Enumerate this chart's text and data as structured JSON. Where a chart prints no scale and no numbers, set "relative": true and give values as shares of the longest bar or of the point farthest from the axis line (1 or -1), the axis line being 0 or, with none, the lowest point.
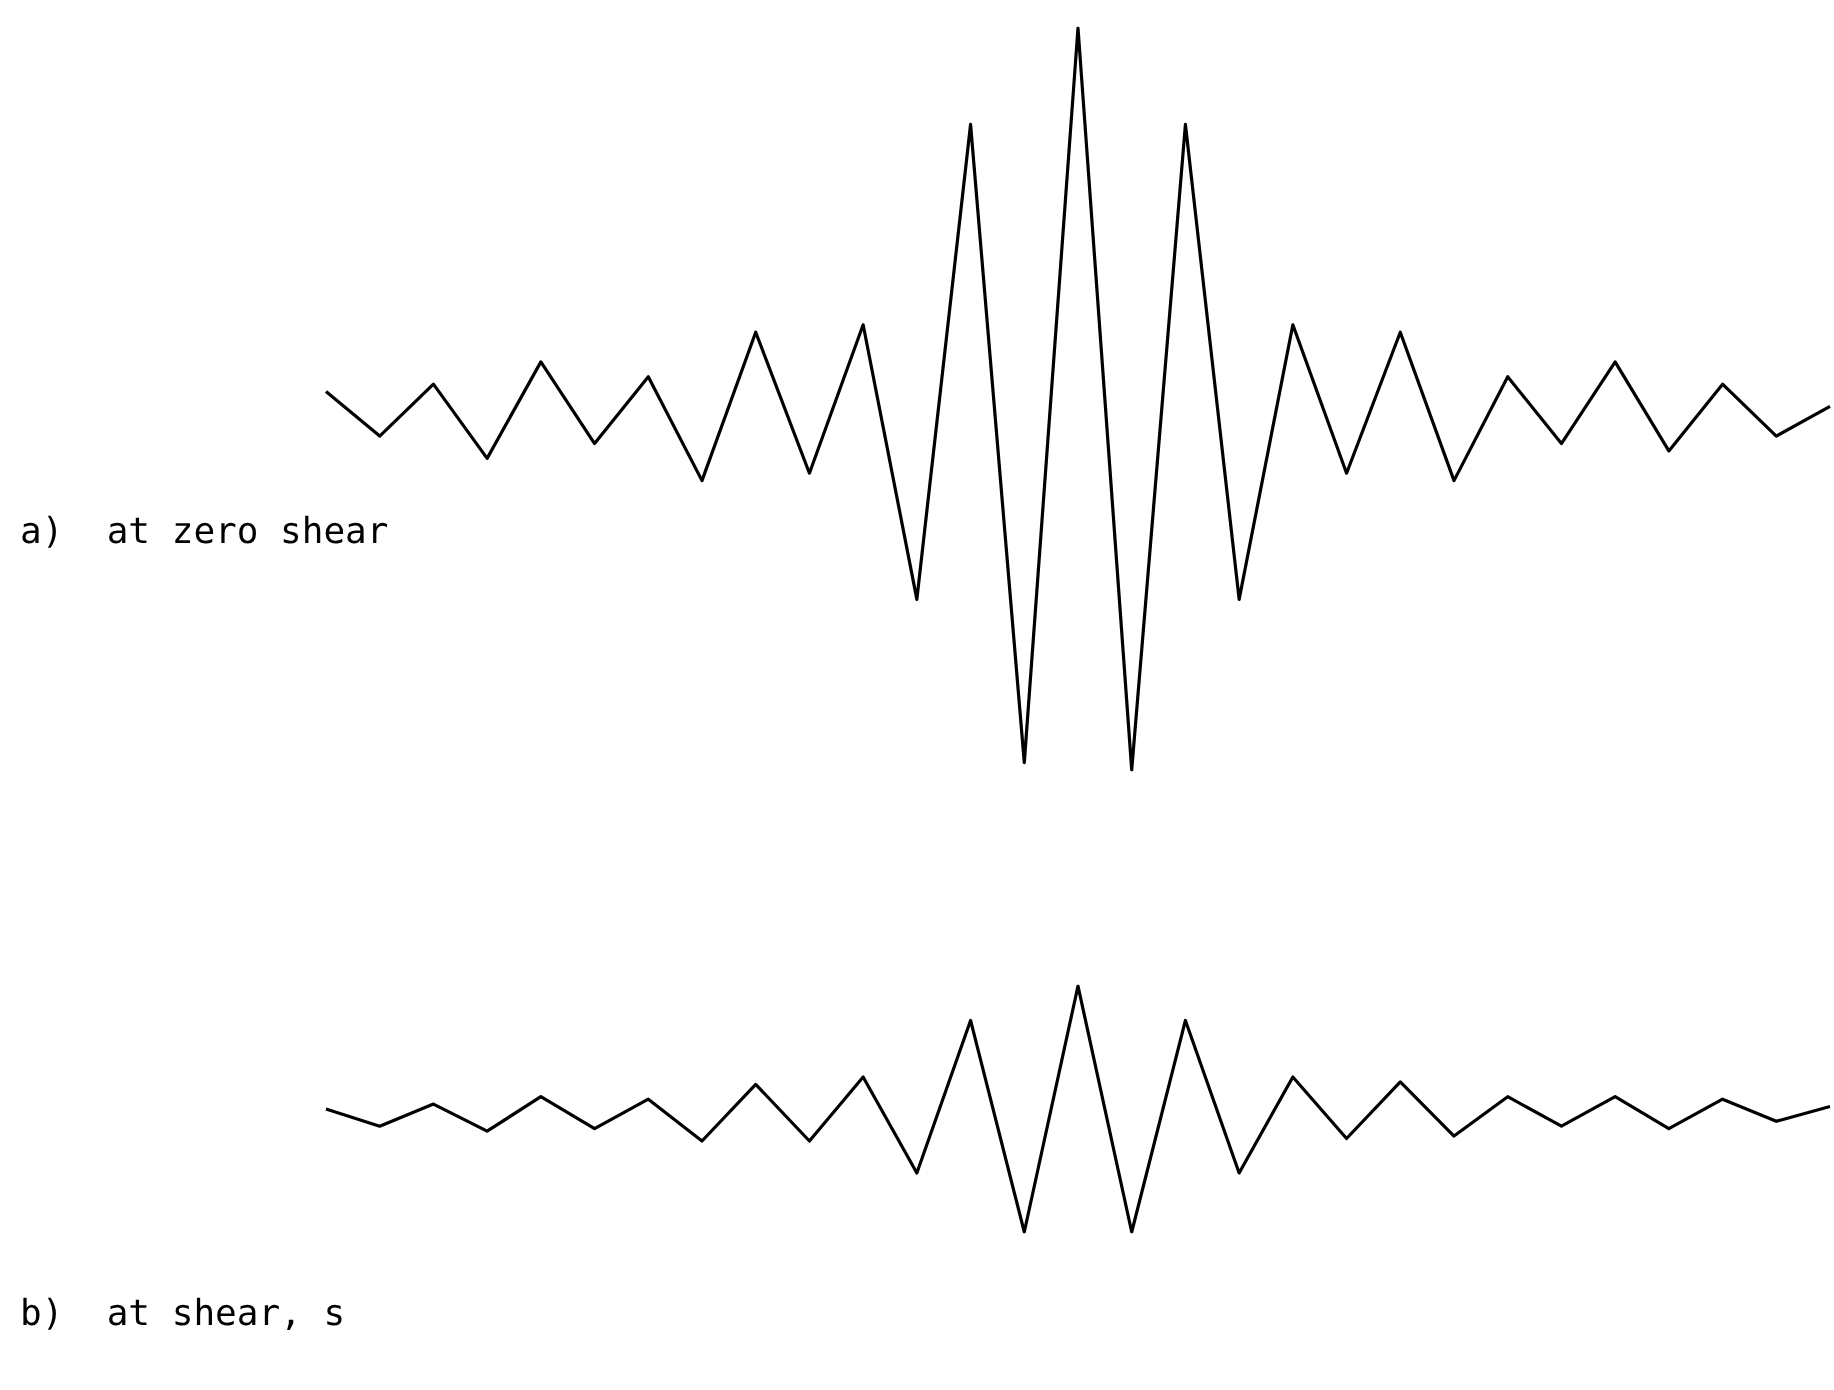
{
  "chart_data": [
    {
      "type": "line",
      "title": "a)  at zero shear",
      "relative": true,
      "marker": "none",
      "color": "#000000",
      "categories": [
        null,
        null,
        null,
        null,
        null,
        null,
        null,
        null,
        null,
        null,
        null,
        null,
        null,
        null,
        null,
        null,
        null,
        null,
        null,
        null,
        null,
        null,
        null,
        null,
        null,
        null,
        null,
        null,
        null
      ],
      "values": [
        0.51,
        0.45,
        0.52,
        0.42,
        0.55,
        0.44,
        0.53,
        0.39,
        0.59,
        0.4,
        0.6,
        0.23,
        0.87,
        0.01,
        1,
        0,
        0.87,
        0.23,
        0.6,
        0.4,
        0.59,
        0.39,
        0.53,
        0.44,
        0.55,
        0.43,
        0.52,
        0.45,
        0.49
      ]
    },
    {
      "type": "line",
      "title": "b)  at shear, s",
      "relative": true,
      "marker": "none",
      "color": "#000000",
      "categories": [
        null,
        null,
        null,
        null,
        null,
        null,
        null,
        null,
        null,
        null,
        null,
        null,
        null,
        null,
        null,
        null,
        null,
        null,
        null,
        null,
        null,
        null,
        null,
        null,
        null,
        null,
        null,
        null,
        null
      ],
      "values": [
        0.5,
        0.43,
        0.52,
        0.41,
        0.55,
        0.42,
        0.54,
        0.37,
        0.6,
        0.37,
        0.63,
        0.24,
        0.86,
        0,
        1,
        0,
        0.86,
        0.24,
        0.63,
        0.38,
        0.61,
        0.39,
        0.55,
        0.43,
        0.55,
        0.42,
        0.54,
        0.45,
        0.51
      ]
    }
  ]
}
